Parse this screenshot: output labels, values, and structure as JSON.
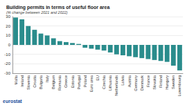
{
  "chart_data": {
    "type": "bar",
    "title": "Building permits in terms of useful floor area",
    "subtitle": "(% change between 2021 and 2022)",
    "footer": "eurostat",
    "categories": [
      "Malta",
      "Ireland",
      "Slovenia",
      "Croatia",
      "Bulgaria",
      "Italy",
      "Belgium",
      "Romania",
      "Greece",
      "Estonia",
      "Portugal",
      "Poland",
      "Euro area",
      "EU",
      "Czechia",
      "Lithuania",
      "Netherlands",
      "Latvia",
      "Austria",
      "Germany",
      "Denmark",
      "France",
      "Slovakia",
      "Finland",
      "Hungary",
      "Sweden",
      "Luxembourg"
    ],
    "values": [
      29,
      27,
      20,
      16,
      12,
      10,
      7,
      4,
      3,
      2,
      1,
      -3,
      -4,
      -5,
      -6,
      -8,
      -10,
      -11,
      -12,
      -13,
      -14,
      -15,
      -16,
      -17,
      -18,
      -22,
      -27
    ],
    "color": "#2a8c8c",
    "ylim": [
      -30,
      30
    ],
    "yticks": [
      -30,
      -20,
      -10,
      0,
      10,
      20,
      30
    ],
    "grid": true
  }
}
